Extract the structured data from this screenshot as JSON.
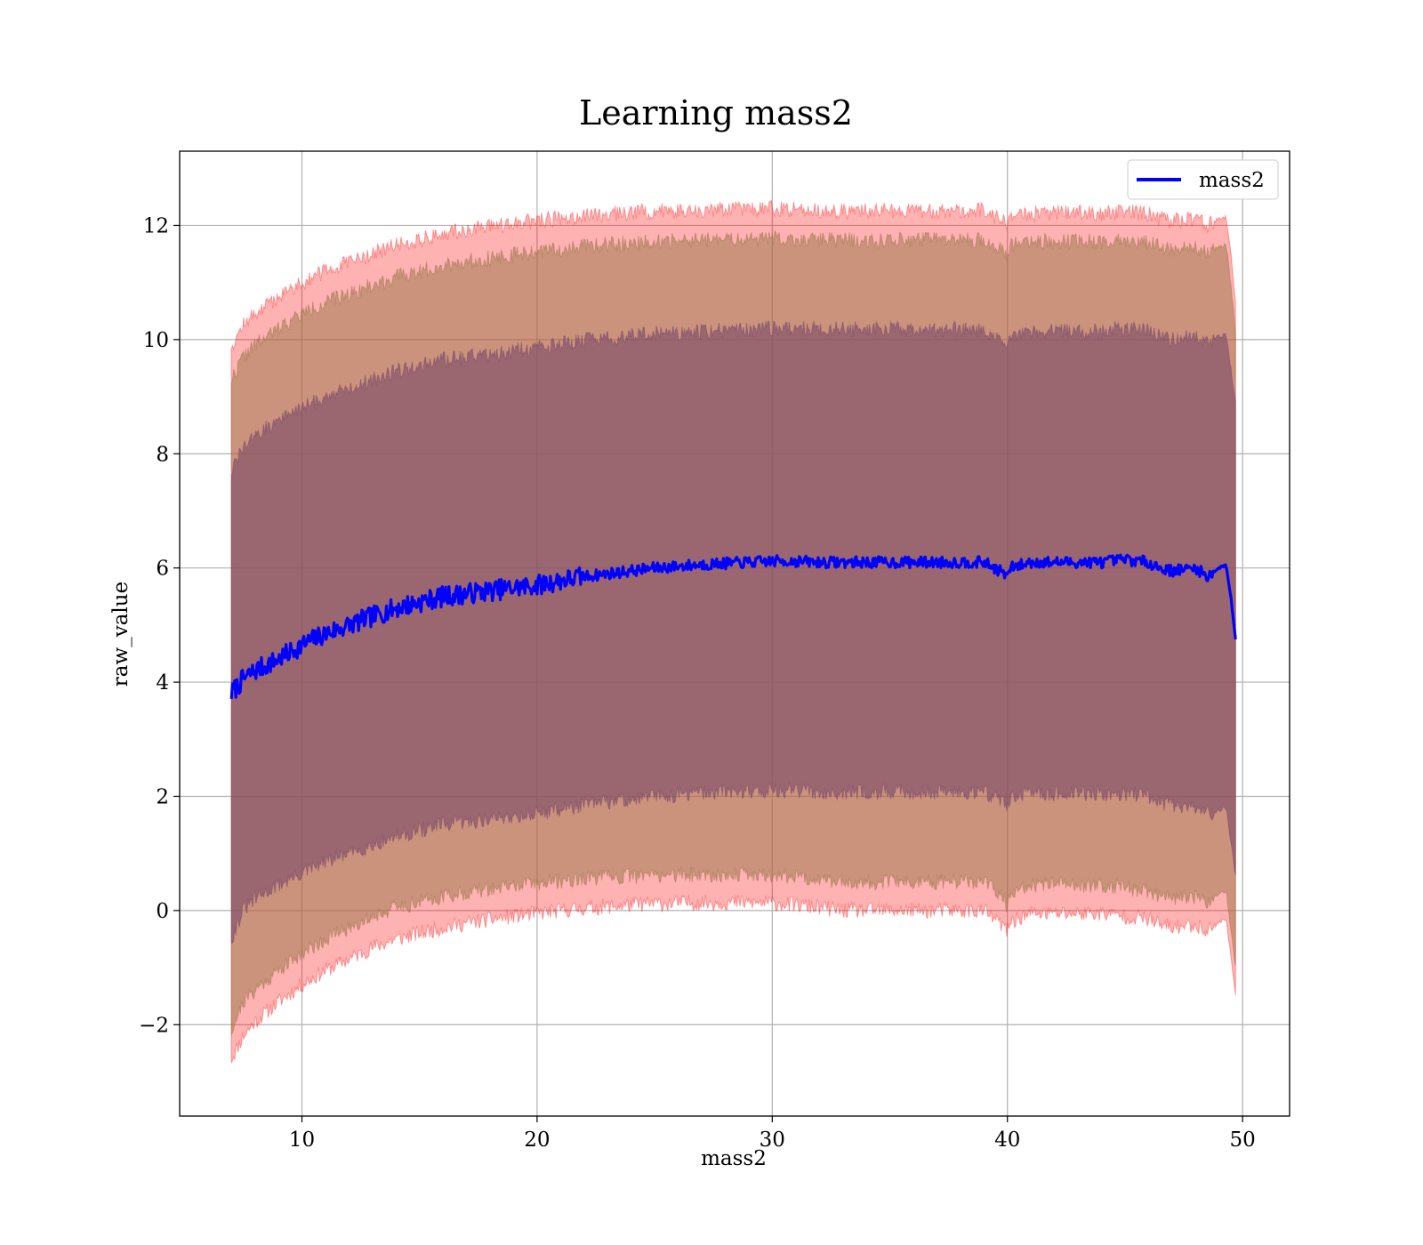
{
  "chart_data": {
    "type": "line",
    "title": "Learning mass2",
    "xlabel": "mass2",
    "ylabel": "raw_value",
    "xlim": [
      4.8,
      52.0
    ],
    "ylim": [
      -3.6,
      13.3
    ],
    "xticks": [
      10,
      20,
      30,
      40,
      50
    ],
    "yticks": [
      -2,
      0,
      2,
      4,
      6,
      8,
      10,
      12
    ],
    "xtick_labels": [
      "10",
      "20",
      "30",
      "40",
      "50"
    ],
    "ytick_labels": [
      "−2",
      "0",
      "2",
      "4",
      "6",
      "8",
      "10",
      "12"
    ],
    "grid": true,
    "legend": {
      "position": "top-right",
      "entries": [
        "mass2"
      ]
    },
    "series": [
      {
        "name": "mass2",
        "color": "#0000ff",
        "x": [
          7.0,
          7.5,
          8.0,
          9.0,
          10.0,
          11.0,
          12.0,
          13.0,
          14.0,
          15.0,
          16.0,
          17.0,
          18.0,
          19.0,
          20.0,
          21.0,
          22.0,
          23.0,
          24.0,
          25.0,
          26.0,
          27.0,
          28.0,
          29.0,
          30.0,
          31.0,
          32.0,
          33.0,
          34.0,
          35.0,
          36.0,
          37.0,
          38.0,
          39.0,
          39.9,
          40.0,
          40.1,
          41.0,
          42.0,
          43.0,
          44.0,
          45.0,
          46.0,
          46.5,
          47.0,
          48.0,
          48.5,
          49.0,
          49.3,
          49.5,
          49.7
        ],
        "y": [
          3.8,
          4.05,
          4.2,
          4.4,
          4.65,
          4.85,
          5.0,
          5.15,
          5.3,
          5.4,
          5.5,
          5.55,
          5.6,
          5.65,
          5.7,
          5.78,
          5.85,
          5.9,
          5.95,
          6.0,
          6.03,
          6.06,
          6.08,
          6.1,
          6.12,
          6.12,
          6.1,
          6.1,
          6.1,
          6.1,
          6.1,
          6.1,
          6.1,
          6.1,
          5.9,
          5.8,
          6.0,
          6.1,
          6.1,
          6.1,
          6.1,
          6.15,
          6.1,
          6.0,
          5.95,
          6.0,
          5.85,
          6.0,
          6.05,
          5.5,
          4.75
        ],
        "inner_band": {
          "lower": [
            -0.5,
            0.0,
            0.2,
            0.45,
            0.65,
            0.85,
            1.0,
            1.15,
            1.3,
            1.4,
            1.5,
            1.55,
            1.6,
            1.65,
            1.7,
            1.78,
            1.85,
            1.9,
            1.95,
            2.0,
            2.03,
            2.06,
            2.08,
            2.1,
            2.1,
            2.1,
            2.08,
            2.08,
            2.08,
            2.08,
            2.08,
            2.08,
            2.08,
            2.08,
            1.9,
            1.8,
            1.98,
            2.05,
            2.05,
            2.05,
            2.05,
            2.05,
            2.0,
            1.9,
            1.85,
            1.8,
            1.7,
            1.75,
            1.8,
            1.2,
            0.6
          ],
          "upper": [
            7.7,
            8.1,
            8.3,
            8.6,
            8.8,
            9.0,
            9.15,
            9.3,
            9.45,
            9.55,
            9.65,
            9.7,
            9.75,
            9.8,
            9.85,
            9.92,
            9.98,
            10.02,
            10.06,
            10.1,
            10.12,
            10.14,
            10.16,
            10.18,
            10.2,
            10.2,
            10.18,
            10.18,
            10.18,
            10.18,
            10.18,
            10.18,
            10.18,
            10.18,
            10.0,
            9.9,
            10.1,
            10.15,
            10.15,
            10.15,
            10.15,
            10.2,
            10.15,
            10.05,
            10.0,
            10.05,
            9.95,
            10.05,
            10.1,
            9.5,
            8.9
          ]
        },
        "middle_band": {
          "lower": [
            -2.1,
            -1.6,
            -1.4,
            -1.05,
            -0.75,
            -0.5,
            -0.3,
            -0.1,
            0.05,
            0.15,
            0.25,
            0.32,
            0.38,
            0.43,
            0.48,
            0.52,
            0.56,
            0.58,
            0.6,
            0.62,
            0.63,
            0.63,
            0.63,
            0.63,
            0.62,
            0.6,
            0.55,
            0.5,
            0.5,
            0.5,
            0.5,
            0.5,
            0.5,
            0.5,
            0.2,
            0.0,
            0.3,
            0.45,
            0.45,
            0.45,
            0.45,
            0.4,
            0.35,
            0.25,
            0.2,
            0.25,
            0.15,
            0.3,
            0.35,
            -0.3,
            -1.0
          ],
          "upper": [
            9.3,
            9.7,
            9.9,
            10.2,
            10.45,
            10.65,
            10.8,
            10.95,
            11.1,
            11.2,
            11.3,
            11.37,
            11.43,
            11.48,
            11.53,
            11.58,
            11.63,
            11.66,
            11.69,
            11.72,
            11.73,
            11.74,
            11.75,
            11.76,
            11.78,
            11.76,
            11.74,
            11.74,
            11.74,
            11.74,
            11.74,
            11.74,
            11.74,
            11.74,
            11.55,
            11.4,
            11.65,
            11.72,
            11.72,
            11.72,
            11.72,
            11.76,
            11.7,
            11.62,
            11.58,
            11.62,
            11.5,
            11.62,
            11.66,
            11.0,
            10.1
          ]
        },
        "outer_band": {
          "lower": [
            -2.6,
            -2.2,
            -1.95,
            -1.6,
            -1.3,
            -1.05,
            -0.85,
            -0.65,
            -0.5,
            -0.4,
            -0.3,
            -0.22,
            -0.16,
            -0.1,
            -0.05,
            0.0,
            0.04,
            0.07,
            0.1,
            0.12,
            0.13,
            0.14,
            0.14,
            0.14,
            0.13,
            0.1,
            0.05,
            0.0,
            0.0,
            0.0,
            0.0,
            0.0,
            0.0,
            0.0,
            -0.3,
            -0.4,
            -0.2,
            -0.05,
            -0.05,
            -0.05,
            -0.05,
            -0.1,
            -0.15,
            -0.25,
            -0.3,
            -0.25,
            -0.35,
            -0.2,
            -0.15,
            -0.8,
            -1.45
          ],
          "upper": [
            9.9,
            10.25,
            10.45,
            10.75,
            11.0,
            11.2,
            11.35,
            11.5,
            11.65,
            11.75,
            11.85,
            11.92,
            11.98,
            12.03,
            12.08,
            12.13,
            12.17,
            12.2,
            12.23,
            12.25,
            12.26,
            12.27,
            12.28,
            12.29,
            12.3,
            12.28,
            12.26,
            12.26,
            12.26,
            12.26,
            12.26,
            12.26,
            12.26,
            12.26,
            12.05,
            11.95,
            12.15,
            12.22,
            12.22,
            12.22,
            12.22,
            12.26,
            12.2,
            12.12,
            12.08,
            12.12,
            12.0,
            12.12,
            12.16,
            11.5,
            10.6
          ]
        }
      }
    ],
    "colors": {
      "line": "#0000ff",
      "outer_band": "#ff0000",
      "middle_band": "#a07a50",
      "inner_band": "#7a4a6a"
    }
  }
}
